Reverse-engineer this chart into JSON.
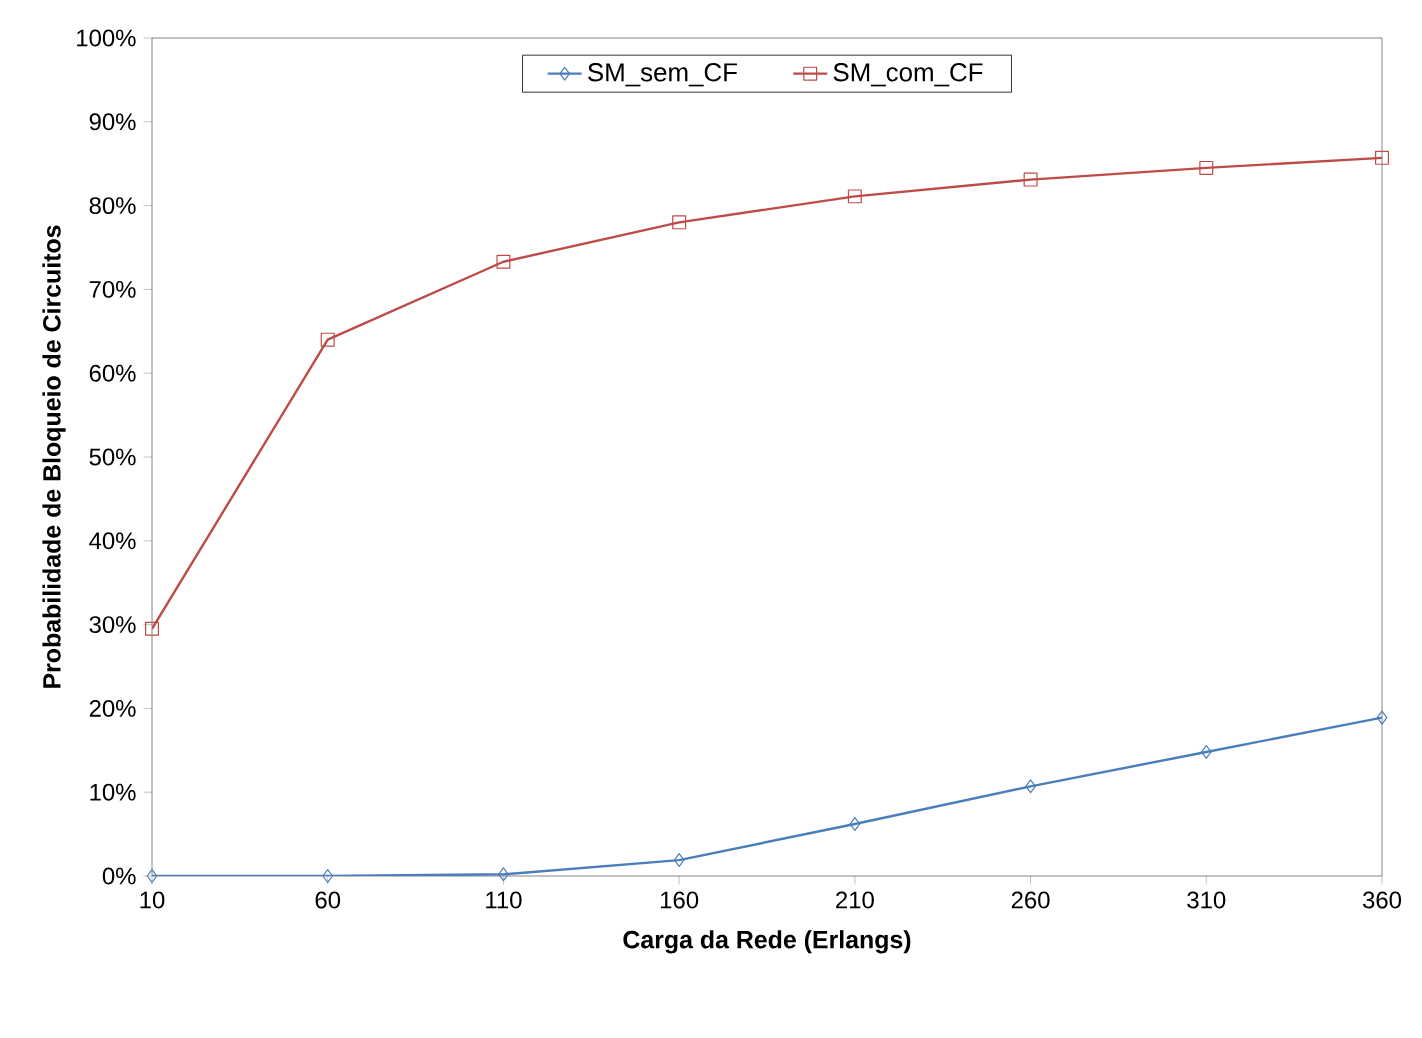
{
  "chart_data": {
    "type": "line",
    "xlabel": "Carga da Rede (Erlangs)",
    "ylabel": "Probabilidade de Bloqueio de Circuitos",
    "x": [
      10,
      60,
      110,
      160,
      210,
      260,
      310,
      360
    ],
    "series": [
      {
        "name": "SM_sem_CF",
        "color": "#4a7ebb",
        "marker": "diamond",
        "values": [
          0,
          0,
          0.2,
          1.9,
          6.2,
          10.7,
          14.8,
          18.9
        ]
      },
      {
        "name": "SM_com_CF",
        "color": "#be4b48",
        "marker": "square",
        "values": [
          29.5,
          64.0,
          73.3,
          78.0,
          81.1,
          83.1,
          84.5,
          85.7
        ]
      }
    ],
    "xlim": [
      10,
      360
    ],
    "xticks": [
      10,
      60,
      110,
      160,
      210,
      260,
      310,
      360
    ],
    "ylim": [
      0,
      100
    ],
    "yticks": [
      {
        "value": 0,
        "label": "0%"
      },
      {
        "value": 10,
        "label": "10%"
      },
      {
        "value": 20,
        "label": "20%"
      },
      {
        "value": 30,
        "label": "30%"
      },
      {
        "value": 40,
        "label": "40%"
      },
      {
        "value": 50,
        "label": "50%"
      },
      {
        "value": 60,
        "label": "60%"
      },
      {
        "value": 70,
        "label": "70%"
      },
      {
        "value": 80,
        "label": "80%"
      },
      {
        "value": 90,
        "label": "90%"
      },
      {
        "value": 100,
        "label": "100%"
      }
    ],
    "legend": "top",
    "grid": false,
    "line_style": "solid"
  }
}
